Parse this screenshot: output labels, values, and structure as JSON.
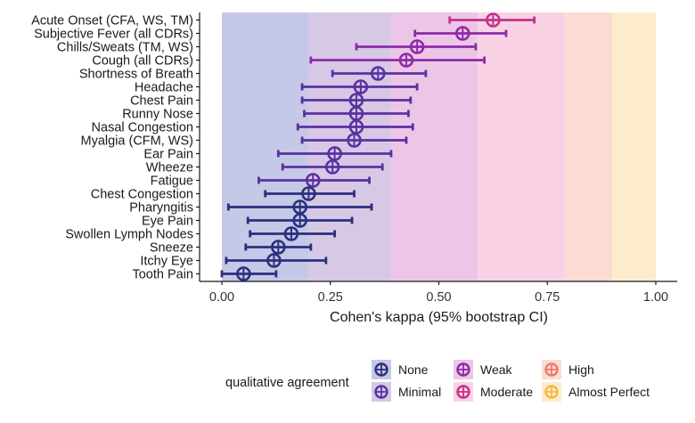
{
  "chart_data": {
    "type": "forest",
    "xlabel": "Cohen's kappa (95% bootstrap CI)",
    "xlim": [
      0,
      1
    ],
    "xticks": [
      {
        "v": 0.0,
        "label": "0.00"
      },
      {
        "v": 0.25,
        "label": "0.25"
      },
      {
        "v": 0.5,
        "label": "0.50"
      },
      {
        "v": 0.75,
        "label": "0.75"
      },
      {
        "v": 1.0,
        "label": "1.00"
      }
    ],
    "bands": [
      {
        "level": "None",
        "from": 0.0,
        "to": 0.2,
        "color": "#c5c8e6"
      },
      {
        "level": "Minimal",
        "from": 0.2,
        "to": 0.39,
        "color": "#d7c8e6"
      },
      {
        "level": "Weak",
        "from": 0.39,
        "to": 0.59,
        "color": "#ecc6e6"
      },
      {
        "level": "Moderate",
        "from": 0.59,
        "to": 0.79,
        "color": "#f8d2e4"
      },
      {
        "level": "High",
        "from": 0.79,
        "to": 0.9,
        "color": "#fbdcd4"
      },
      {
        "level": "Almost Perfect",
        "from": 0.9,
        "to": 1.0,
        "color": "#fdeccc"
      }
    ],
    "level_colors": {
      "None": "#2b2f7e",
      "Minimal": "#5a31a0",
      "Weak": "#8e2aa8",
      "Moderate": "#c2328a",
      "High": "#ee7a64",
      "Almost Perfect": "#f9b545"
    },
    "rows": [
      {
        "label": "Acute Onset (CFA, WS, TM)",
        "kappa": 0.625,
        "lo": 0.525,
        "hi": 0.72,
        "level": "Moderate"
      },
      {
        "label": "Subjective Fever (all CDRs)",
        "kappa": 0.555,
        "lo": 0.445,
        "hi": 0.655,
        "level": "Weak"
      },
      {
        "label": "Chills/Sweats (TM, WS)",
        "kappa": 0.45,
        "lo": 0.31,
        "hi": 0.585,
        "level": "Weak"
      },
      {
        "label": "Cough (all CDRs)",
        "kappa": 0.425,
        "lo": 0.205,
        "hi": 0.605,
        "level": "Weak"
      },
      {
        "label": "Shortness of Breath",
        "kappa": 0.36,
        "lo": 0.255,
        "hi": 0.47,
        "level": "Minimal"
      },
      {
        "label": "Headache",
        "kappa": 0.32,
        "lo": 0.185,
        "hi": 0.45,
        "level": "Minimal"
      },
      {
        "label": "Chest Pain",
        "kappa": 0.31,
        "lo": 0.185,
        "hi": 0.435,
        "level": "Minimal"
      },
      {
        "label": "Runny Nose",
        "kappa": 0.31,
        "lo": 0.19,
        "hi": 0.43,
        "level": "Minimal"
      },
      {
        "label": "Nasal Congestion",
        "kappa": 0.31,
        "lo": 0.175,
        "hi": 0.44,
        "level": "Minimal"
      },
      {
        "label": "Myalgia (CFM, WS)",
        "kappa": 0.305,
        "lo": 0.185,
        "hi": 0.425,
        "level": "Minimal"
      },
      {
        "label": "Ear Pain",
        "kappa": 0.26,
        "lo": 0.13,
        "hi": 0.39,
        "level": "Minimal"
      },
      {
        "label": "Wheeze",
        "kappa": 0.255,
        "lo": 0.14,
        "hi": 0.37,
        "level": "Minimal"
      },
      {
        "label": "Fatigue",
        "kappa": 0.21,
        "lo": 0.085,
        "hi": 0.34,
        "level": "Minimal"
      },
      {
        "label": "Chest Congestion",
        "kappa": 0.2,
        "lo": 0.1,
        "hi": 0.305,
        "level": "None"
      },
      {
        "label": "Pharyngitis",
        "kappa": 0.18,
        "lo": 0.015,
        "hi": 0.345,
        "level": "None"
      },
      {
        "label": "Eye Pain",
        "kappa": 0.18,
        "lo": 0.06,
        "hi": 0.3,
        "level": "None"
      },
      {
        "label": "Swollen Lymph Nodes",
        "kappa": 0.16,
        "lo": 0.065,
        "hi": 0.26,
        "level": "None"
      },
      {
        "label": "Sneeze",
        "kappa": 0.13,
        "lo": 0.055,
        "hi": 0.205,
        "level": "None"
      },
      {
        "label": "Itchy Eye",
        "kappa": 0.12,
        "lo": 0.01,
        "hi": 0.24,
        "level": "None"
      },
      {
        "label": "Tooth Pain",
        "kappa": 0.05,
        "lo": 0.0,
        "hi": 0.125,
        "level": "None"
      }
    ],
    "legend": {
      "title": "qualitative agreement",
      "position": "bottom",
      "items": [
        "None",
        "Minimal",
        "Weak",
        "Moderate",
        "High",
        "Almost Perfect"
      ]
    }
  }
}
